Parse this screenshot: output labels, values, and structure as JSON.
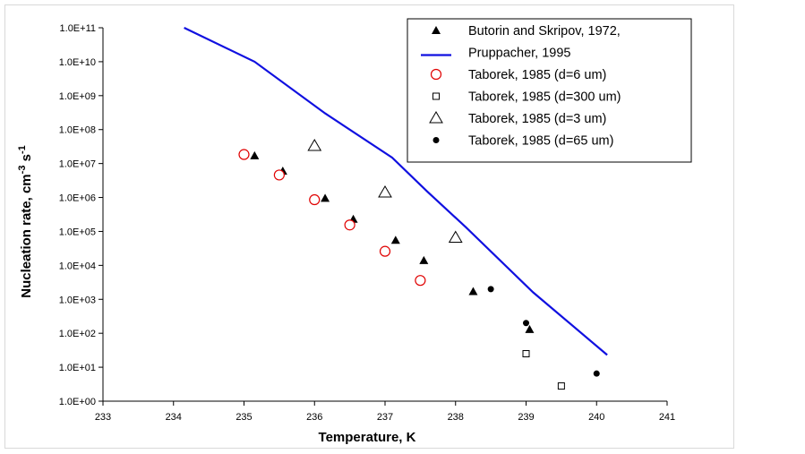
{
  "chart_data": {
    "type": "scatter",
    "xlabel": "Temperature, K",
    "ylabel": "Nucleation rate, cm",
    "ylabel_sup1": "-3",
    "ylabel_mid": " s",
    "ylabel_sup2": "-1",
    "xlim": [
      233,
      241
    ],
    "ylim_log10": [
      0,
      11
    ],
    "x_ticks": [
      "233",
      "234",
      "235",
      "236",
      "237",
      "238",
      "239",
      "240",
      "241"
    ],
    "y_ticks": [
      "1.0E+00",
      "1.0E+01",
      "1.0E+02",
      "1.0E+03",
      "1.0E+04",
      "1.0E+05",
      "1.0E+06",
      "1.0E+07",
      "1.0E+08",
      "1.0E+09",
      "1.0E+10",
      "1.0E+11"
    ],
    "legend_position": "top-right",
    "colors": {
      "line": "#1010e0",
      "red_marker": "#e00000",
      "black": "#000000"
    },
    "series": [
      {
        "name": "Butorin and Skripov, 1972,",
        "marker": "filled-triangle",
        "points": [
          [
            235.15,
            17000000.0
          ],
          [
            235.55,
            6000000.0
          ],
          [
            236.15,
            950000.0
          ],
          [
            236.55,
            230000.0
          ],
          [
            237.15,
            55000.0
          ],
          [
            237.55,
            14000.0
          ],
          [
            238.25,
            1700.0
          ],
          [
            239.05,
            130.0
          ]
        ]
      },
      {
        "name": "Pruppacher, 1995",
        "marker": "line",
        "points": [
          [
            234.15,
            100000000000.0
          ],
          [
            235.15,
            10000000000.0
          ],
          [
            236.15,
            300000000.0
          ],
          [
            237.1,
            15000000.0
          ],
          [
            237.6,
            1500000.0
          ],
          [
            238.15,
            130000.0
          ],
          [
            239.1,
            1600.0
          ],
          [
            240.15,
            23.0
          ]
        ]
      },
      {
        "name": "Taborek, 1985 (d=6 um)",
        "marker": "open-circle-red",
        "points": [
          [
            235.0,
            18500000.0
          ],
          [
            235.5,
            4600000.0
          ],
          [
            236.0,
            860000.0
          ],
          [
            236.5,
            155000.0
          ],
          [
            237.0,
            26000.0
          ],
          [
            237.5,
            3600.0
          ]
        ]
      },
      {
        "name": "Taborek, 1985 (d=300 um)",
        "marker": "open-square",
        "points": [
          [
            239.0,
            25.0
          ],
          [
            239.5,
            2.8
          ]
        ]
      },
      {
        "name": "Taborek, 1985 (d=3 um)",
        "marker": "open-triangle",
        "points": [
          [
            236.0,
            33000000.0
          ],
          [
            237.0,
            1400000.0
          ],
          [
            238.0,
            65000.0
          ]
        ]
      },
      {
        "name": "Taborek, 1985 (d=65 um)",
        "marker": "filled-circle",
        "points": [
          [
            238.5,
            2000.0
          ],
          [
            239.0,
            200.0
          ],
          [
            240.0,
            6.5
          ]
        ]
      }
    ]
  }
}
